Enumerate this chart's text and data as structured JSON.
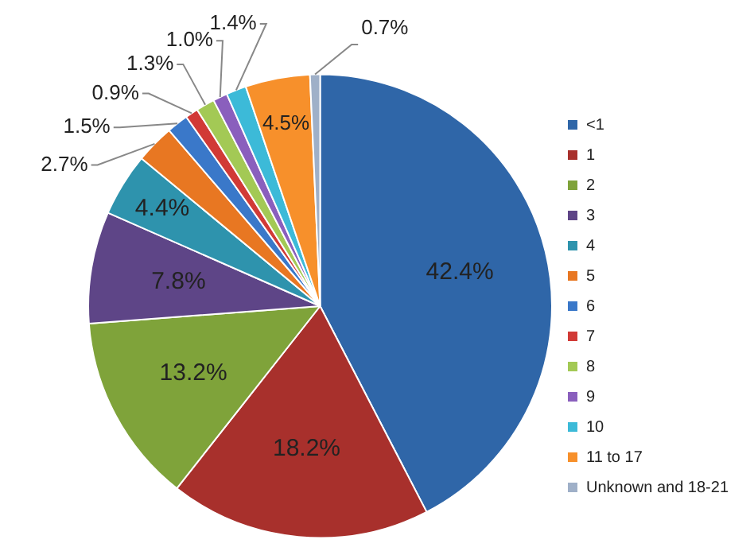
{
  "chart_data": {
    "type": "pie",
    "categories": [
      "<1",
      "1",
      "2",
      "3",
      "4",
      "5",
      "6",
      "7",
      "8",
      "9",
      "10",
      "11 to 17",
      "Unknown and 18-21"
    ],
    "values": [
      42.4,
      18.2,
      13.2,
      7.8,
      4.4,
      2.7,
      1.5,
      0.9,
      1.3,
      1.0,
      1.4,
      4.5,
      0.7
    ],
    "value_labels": [
      "42.4%",
      "18.2%",
      "13.2%",
      "7.8%",
      "4.4%",
      "2.7%",
      "1.5%",
      "0.9%",
      "1.3%",
      "1.0%",
      "1.4%",
      "4.5%",
      "0.7%"
    ],
    "colors": [
      "#2f66a8",
      "#a8302c",
      "#7fa33a",
      "#5e4587",
      "#2e93ad",
      "#e87722",
      "#3a78c9",
      "#d13a36",
      "#a3c955",
      "#8a5fbd",
      "#3cbad8",
      "#f7902b",
      "#9fb0c8"
    ],
    "legend": "right"
  }
}
